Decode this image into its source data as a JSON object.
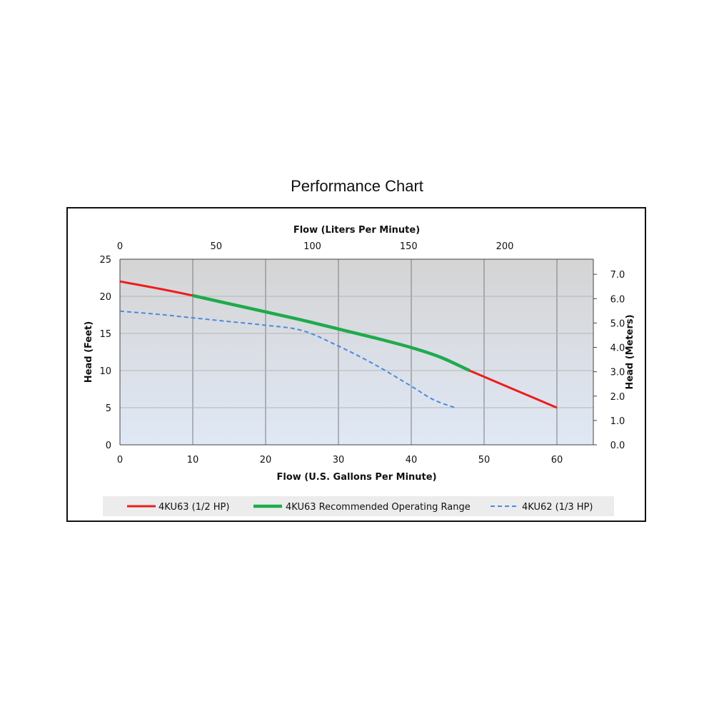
{
  "chart_data": {
    "type": "line",
    "title": "Performance Chart",
    "xlabel": "Flow (U.S. Gallons Per Minute)",
    "ylabel": "Head (Feet)",
    "x2label": "Flow (Liters Per Minute)",
    "y2label": "Head (Meters)",
    "xlim": [
      0,
      65
    ],
    "ylim": [
      0,
      25
    ],
    "x2lim": [
      0,
      246
    ],
    "y2lim": [
      0,
      7.62
    ],
    "xticks": [
      "0",
      "10",
      "20",
      "30",
      "40",
      "50",
      "60"
    ],
    "yticks": [
      "0",
      "5",
      "10",
      "15",
      "20",
      "25"
    ],
    "x2ticks": [
      "0",
      "50",
      "100",
      "150",
      "200"
    ],
    "y2ticks": [
      "0.0",
      "1.0",
      "2.0",
      "3.0",
      "4.0",
      "5.0",
      "6.0",
      "7.0"
    ],
    "grid": true,
    "legend_position": "bottom",
    "series": [
      {
        "name": "4KU63 (1/2 HP)",
        "color": "#ee1c1c",
        "style": "solid",
        "x": [
          0,
          5,
          10,
          20,
          30,
          40,
          44,
          48,
          60
        ],
        "y": [
          22,
          21.1,
          20.1,
          17.9,
          15.6,
          13.1,
          11.8,
          10,
          5
        ]
      },
      {
        "name": "4KU63 Recommended Operating Range",
        "color": "#1faa4c",
        "style": "solid",
        "x": [
          10,
          15,
          20,
          25,
          30,
          35,
          40,
          44,
          48
        ],
        "y": [
          20.1,
          19,
          17.9,
          16.8,
          15.6,
          14.4,
          13.1,
          11.8,
          10
        ]
      },
      {
        "name": "4KU62 (1/3 HP)",
        "color": "#4a8ae0",
        "style": "dashed",
        "x": [
          0,
          5,
          10,
          15,
          20,
          25,
          30,
          35,
          40,
          43,
          46
        ],
        "y": [
          18,
          17.6,
          17.1,
          16.6,
          16.1,
          15.4,
          13.3,
          10.8,
          7.9,
          6.1,
          5
        ]
      }
    ]
  }
}
